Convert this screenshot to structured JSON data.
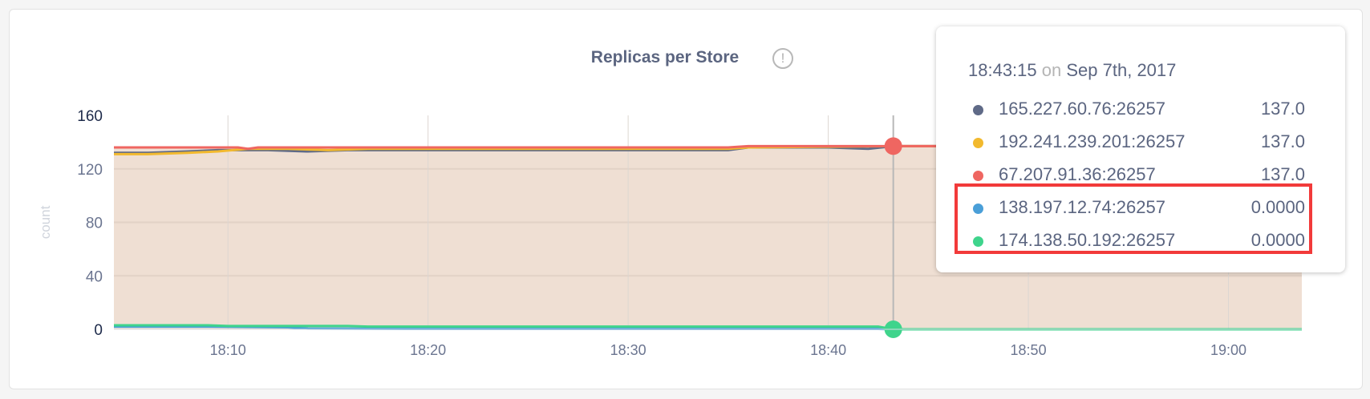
{
  "chart_data": {
    "type": "line",
    "title": "Replicas per Store",
    "ylabel": "count",
    "xlabel": "",
    "ylim": [
      0,
      160
    ],
    "yticks": [
      "0",
      "40",
      "80",
      "120",
      "160"
    ],
    "xlim": [
      "18:04:18",
      "19:03:40"
    ],
    "xticks": [
      "18:10",
      "18:20",
      "18:30",
      "18:40",
      "18:50",
      "19:00"
    ],
    "grid": true,
    "area_fill": "#efdfd3",
    "hover_time": "18:43:15",
    "series": [
      {
        "name": "165.227.60.76:26257",
        "color": "#5f6a87",
        "x": [
          "18:04:18",
          "18:06:00",
          "18:08:00",
          "18:09:30",
          "18:12:00",
          "18:14:00",
          "18:16:00",
          "18:20:00",
          "18:35:00",
          "18:36:00",
          "18:40:00",
          "18:42:00",
          "18:43:15",
          "19:03:40"
        ],
        "values": [
          132,
          132,
          133,
          134,
          134,
          133,
          134,
          134,
          134,
          136,
          136,
          135,
          137,
          137
        ]
      },
      {
        "name": "192.241.239.201:26257",
        "color": "#f2b92e",
        "x": [
          "18:04:18",
          "18:06:00",
          "18:08:00",
          "18:09:30",
          "18:11:00",
          "18:13:00",
          "18:15:00",
          "18:17:00",
          "18:20:00",
          "18:35:00",
          "18:36:00",
          "18:43:15",
          "19:03:40"
        ],
        "values": [
          131,
          131,
          132,
          133,
          135,
          135,
          134,
          135,
          135,
          135,
          136,
          137,
          137
        ]
      },
      {
        "name": "67.207.91.36:26257",
        "color": "#ef6661",
        "x": [
          "18:04:18",
          "18:10:30",
          "18:11:00",
          "18:11:30",
          "18:35:00",
          "18:36:00",
          "18:43:15",
          "19:03:40"
        ],
        "values": [
          136,
          136,
          135,
          136,
          136,
          137,
          137,
          137
        ]
      },
      {
        "name": "138.197.12.74:26257",
        "color": "#4a9fd8",
        "x": [
          "18:04:18",
          "18:09:00",
          "18:13:00",
          "18:14:00",
          "18:20:00",
          "18:42:30",
          "18:43:15",
          "19:03:40"
        ],
        "values": [
          2,
          2,
          1.5,
          0.5,
          0.3,
          0.3,
          0,
          0
        ]
      },
      {
        "name": "174.138.50.192:26257",
        "color": "#3fd48c",
        "x": [
          "18:04:18",
          "18:09:00",
          "18:10:00",
          "18:16:00",
          "18:17:00",
          "18:42:30",
          "18:43:15",
          "19:03:40"
        ],
        "values": [
          3,
          3,
          2.5,
          2.5,
          2,
          2,
          0,
          0
        ]
      }
    ]
  },
  "tooltip": {
    "time": "18:43:15",
    "on": "on",
    "date": "Sep 7th, 2017",
    "rows": [
      {
        "label": "165.227.60.76:26257",
        "value": "137.0",
        "color": "#5f6a87"
      },
      {
        "label": "192.241.239.201:26257",
        "value": "137.0",
        "color": "#f2b92e"
      },
      {
        "label": "67.207.91.36:26257",
        "value": "137.0",
        "color": "#ef6661"
      },
      {
        "label": "138.197.12.74:26257",
        "value": "0.0000",
        "color": "#4a9fd8"
      },
      {
        "label": "174.138.50.192:26257",
        "value": "0.0000",
        "color": "#3fd48c"
      }
    ],
    "highlight_color": "#f23a3a"
  },
  "info_icon": "exclamation-circle-icon",
  "info_glyph": "!"
}
